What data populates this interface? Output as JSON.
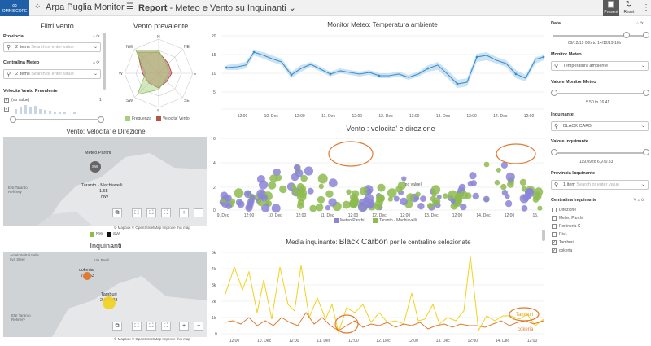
{
  "topbar": {
    "logo_text": "OMNISCOPE",
    "app_title": "Arpa Puglia Monitor",
    "report_label": "Report",
    "report_subtitle": " - Meteo e Vento su Inquinanti",
    "present_label": "Present",
    "reset_label": "Reset"
  },
  "filters": {
    "title": "Filtri vento",
    "provincia_label": "Provincia",
    "provincia_items": "2 items",
    "provincia_placeholder": "Search or enter value",
    "centralina_label": "Centralina Meteo",
    "centralina_items": "2 items",
    "centralina_placeholder": "Search or enter value",
    "velocita_label": "Velocita Vento Prevalente",
    "no_value": "(no value)",
    "hist_max": "1"
  },
  "vento_prevalente": {
    "title": "Vento prevalente",
    "directions": [
      "N",
      "NE",
      "E",
      "SE",
      "S",
      "SW",
      "W",
      "NW"
    ],
    "legend_frequenza": "Frequenza",
    "legend_velocita": "Velocita' Vento",
    "colors": {
      "frequenza": "#a5d17f",
      "velocita": "#b5534a"
    }
  },
  "monitor_meteo": {
    "title": "Monitor Meteo: Temperatura ambiente",
    "y_ticks": [
      "20",
      "15",
      "10",
      "5"
    ],
    "x_ticks": [
      "12:00",
      "10. Dec",
      "12:00",
      "11. Dec",
      "12:00",
      "12. Dec",
      "12:00",
      "13. Dec",
      "12:00",
      "14. Dec",
      "12:00"
    ]
  },
  "vento_map": {
    "title": "Vento: Velocita' e Direzione",
    "station1_name": "Meteo Parchi",
    "station1_dir": "SW",
    "station2_name": "Taranto - Machiavelli",
    "station2_value": "1.65",
    "station2_dir": "NW",
    "place_label": "ENI Taranto Refinery",
    "legend_nw": "NW",
    "legend_sw": "SW",
    "credit": "© Mapbox © OpenStreetMap Improve this map"
  },
  "vento_scatter": {
    "title": "Vento : velocita' e direzione",
    "y_ticks": [
      "6",
      "4",
      "2",
      "0"
    ],
    "x_ticks": [
      "9. Dec",
      "12:00",
      "10. Dec",
      "12:00",
      "11. Dec",
      "12:00",
      "12. Dec",
      "12:00",
      "13. Dec",
      "12:00",
      "14. Dec",
      "12:00",
      "15."
    ],
    "legend_1": "Meteo Parchi",
    "legend_2": "Taranto - Machiavelli",
    "no_value_label": "(no value)",
    "colors": {
      "meteo_parchi": "#8b85d6",
      "taranto": "#8dbb4f"
    }
  },
  "inquinanti_map": {
    "title": "Inquinanti",
    "place_top": "ArcelorMittal Italia Ilva Steel",
    "place_refinery": "ENI Taranto Refinery",
    "place_via": "Via Basili",
    "cokeria_label": "cokeria",
    "cokeria_value": "723.63",
    "tamburi_label": "Tamburi",
    "tamburi_value": "2,677.88",
    "credit": "© Mapbox © OpenStreetMap Improve this map"
  },
  "media_inquinante": {
    "title_prefix": "Media inquinante: ",
    "title_pollutant": "Black Carbon",
    "title_suffix": " per le centraline selezionate",
    "y_ticks": [
      "5k",
      "4k",
      "3k",
      "2k",
      "1k",
      "0"
    ],
    "x_ticks": [
      "12:00",
      "10. Dec",
      "12:00",
      "11. Dec",
      "12:00",
      "12. Dec",
      "12:00",
      "13. Dec",
      "12:00",
      "14. Dec",
      "12:00"
    ],
    "series_tamburi": "Tamburi",
    "series_cokeria": "cokeria",
    "colors": {
      "tamburi": "#f2d21b",
      "cokeria": "#e07a30"
    }
  },
  "right_panel": {
    "data_label": "Data",
    "data_range": "09/12/19 00h to 14/12/19 16h",
    "monitor_label": "Monitor Meteo",
    "monitor_value": "Temperatura ambiente",
    "valore_monitor_label": "Valore Monitor Meteo",
    "valore_monitor_range": "5.50 to 16.41",
    "inquinante_label": "Inquinante",
    "inquinante_value": "BLACK CARB",
    "valore_inquinante_label": "Valore inquinante",
    "valore_inquinante_range": "119.09 to 6,970.83",
    "provincia_label": "Provincia Inquinante",
    "provincia_items": "1 item",
    "provincia_placeholder": "Search or enter value",
    "centralina_label": "Centralina Inquinante",
    "centraline": [
      {
        "name": "Direzione",
        "checked": false
      },
      {
        "name": "Meteo Parchi",
        "checked": false
      },
      {
        "name": "Portineria C",
        "checked": false
      },
      {
        "name": "Riv1",
        "checked": false
      },
      {
        "name": "Tamburi",
        "checked": true
      },
      {
        "name": "cokeria",
        "checked": true
      }
    ]
  }
}
